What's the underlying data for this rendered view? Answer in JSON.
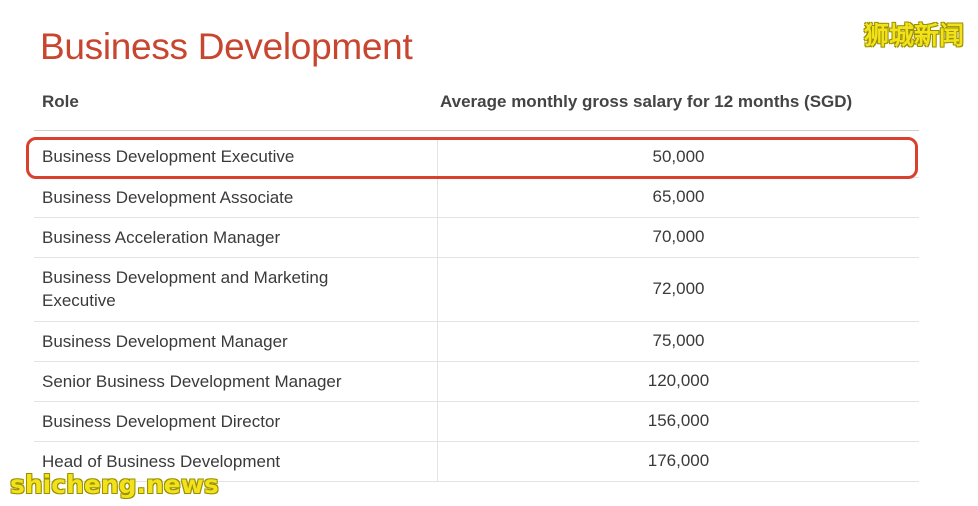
{
  "title": "Business Development",
  "watermark_top": "狮城新闻",
  "watermark_bottom": "shicheng.news",
  "table": {
    "headers": {
      "role": "Role",
      "salary": "Average monthly gross salary for 12 months (SGD)"
    },
    "rows": [
      {
        "role": "Business Development Executive",
        "salary": "50,000"
      },
      {
        "role": "Business Development Associate",
        "salary": "65,000"
      },
      {
        "role": "Business Acceleration Manager",
        "salary": "70,000"
      },
      {
        "role": "Business Development and Marketing Executive",
        "salary": "72,000"
      },
      {
        "role": "Business Development Manager",
        "salary": "75,000"
      },
      {
        "role": "Senior Business Development Manager",
        "salary": "120,000"
      },
      {
        "role": "Business Development Director",
        "salary": "156,000"
      },
      {
        "role": "Head of Business Development",
        "salary": "176,000"
      }
    ]
  },
  "colors": {
    "title": "#c8452f",
    "highlight_border": "#d9402e",
    "watermark": "#f2e21c"
  }
}
